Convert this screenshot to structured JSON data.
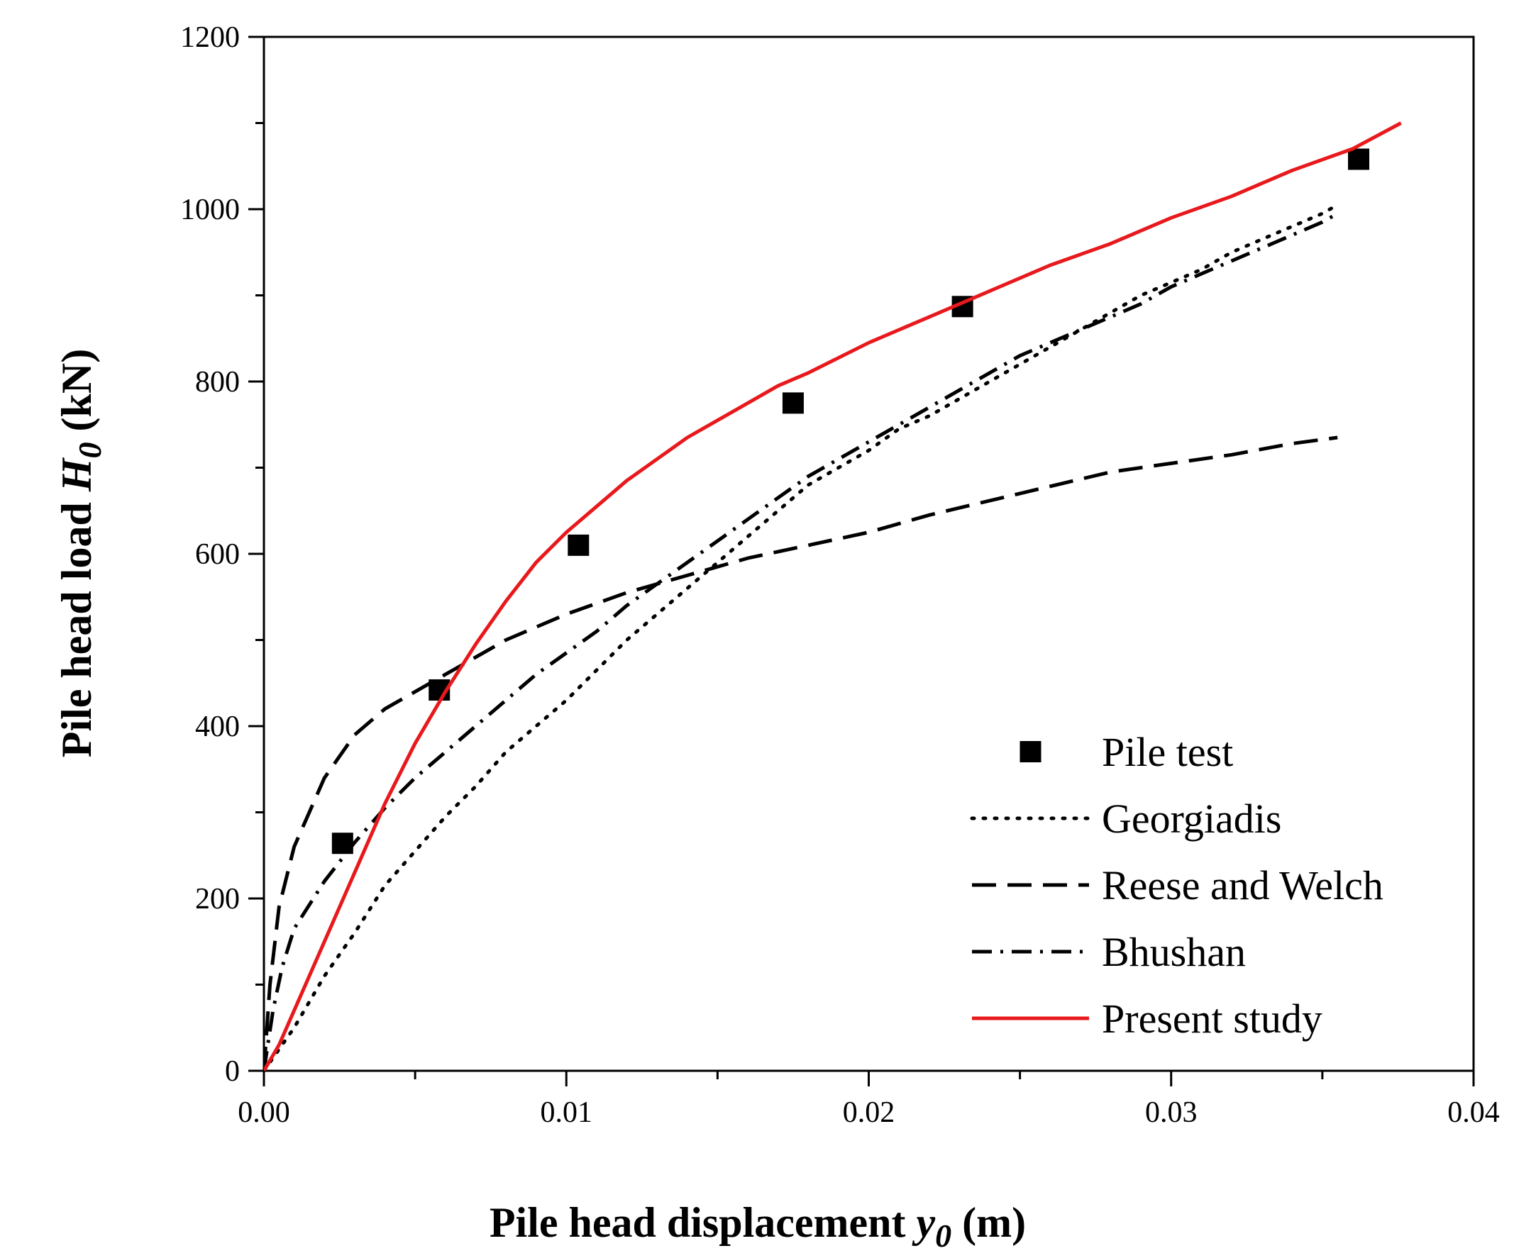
{
  "chart_data": {
    "type": "line",
    "title": "",
    "xlabel": "Pile head displacement",
    "xlabel_var": "y",
    "xlabel_sub": "0",
    "xlabel_unit": "(m)",
    "ylabel": "Pile head load",
    "ylabel_var": "H",
    "ylabel_sub": "0",
    "ylabel_unit": "(kN)",
    "xlim": [
      0,
      0.04
    ],
    "ylim": [
      0,
      1200
    ],
    "xticks": [
      0.0,
      0.01,
      0.02,
      0.03,
      0.04
    ],
    "xtick_labels": [
      "0.00",
      "0.01",
      "0.02",
      "0.03",
      "0.04"
    ],
    "yticks": [
      0,
      200,
      400,
      600,
      800,
      1000,
      1200
    ],
    "ytick_labels": [
      "0",
      "200",
      "400",
      "600",
      "800",
      "1000",
      "1200"
    ],
    "legend_position": "bottom-right",
    "series": [
      {
        "name": "Pile test",
        "style": "square-markers",
        "color": "#000000",
        "points": [
          [
            0.0026,
            264
          ],
          [
            0.0058,
            442
          ],
          [
            0.0104,
            610
          ],
          [
            0.0175,
            775
          ],
          [
            0.0231,
            887
          ],
          [
            0.0362,
            1058
          ]
        ]
      },
      {
        "name": "Georgiadis",
        "style": "dotted",
        "color": "#000000",
        "points": [
          [
            0.0,
            0
          ],
          [
            0.0005,
            25
          ],
          [
            0.001,
            50
          ],
          [
            0.002,
            110
          ],
          [
            0.003,
            160
          ],
          [
            0.004,
            215
          ],
          [
            0.005,
            255
          ],
          [
            0.006,
            295
          ],
          [
            0.007,
            330
          ],
          [
            0.008,
            370
          ],
          [
            0.009,
            400
          ],
          [
            0.01,
            430
          ],
          [
            0.011,
            465
          ],
          [
            0.012,
            500
          ],
          [
            0.013,
            530
          ],
          [
            0.014,
            560
          ],
          [
            0.015,
            590
          ],
          [
            0.016,
            620
          ],
          [
            0.017,
            650
          ],
          [
            0.018,
            680
          ],
          [
            0.019,
            700
          ],
          [
            0.02,
            720
          ],
          [
            0.021,
            745
          ],
          [
            0.022,
            760
          ],
          [
            0.023,
            780
          ],
          [
            0.024,
            800
          ],
          [
            0.025,
            820
          ],
          [
            0.026,
            840
          ],
          [
            0.027,
            860
          ],
          [
            0.028,
            880
          ],
          [
            0.029,
            900
          ],
          [
            0.03,
            915
          ],
          [
            0.031,
            930
          ],
          [
            0.032,
            950
          ],
          [
            0.033,
            965
          ],
          [
            0.034,
            980
          ],
          [
            0.035,
            995
          ],
          [
            0.0355,
            1005
          ]
        ]
      },
      {
        "name": "Reese and Welch",
        "style": "dashed",
        "color": "#000000",
        "points": [
          [
            0.0,
            0
          ],
          [
            0.0002,
            100
          ],
          [
            0.0005,
            190
          ],
          [
            0.001,
            260
          ],
          [
            0.002,
            340
          ],
          [
            0.003,
            390
          ],
          [
            0.004,
            420
          ],
          [
            0.005,
            440
          ],
          [
            0.006,
            460
          ],
          [
            0.007,
            480
          ],
          [
            0.008,
            500
          ],
          [
            0.01,
            530
          ],
          [
            0.012,
            555
          ],
          [
            0.014,
            575
          ],
          [
            0.016,
            595
          ],
          [
            0.018,
            610
          ],
          [
            0.02,
            625
          ],
          [
            0.022,
            645
          ],
          [
            0.025,
            670
          ],
          [
            0.028,
            695
          ],
          [
            0.03,
            705
          ],
          [
            0.032,
            715
          ],
          [
            0.034,
            728
          ],
          [
            0.0355,
            735
          ]
        ]
      },
      {
        "name": "Bhushan",
        "style": "dash-dot",
        "color": "#000000",
        "points": [
          [
            0.0,
            0
          ],
          [
            0.0003,
            70
          ],
          [
            0.0006,
            120
          ],
          [
            0.001,
            165
          ],
          [
            0.002,
            220
          ],
          [
            0.003,
            265
          ],
          [
            0.004,
            305
          ],
          [
            0.005,
            340
          ],
          [
            0.006,
            370
          ],
          [
            0.007,
            400
          ],
          [
            0.008,
            430
          ],
          [
            0.009,
            460
          ],
          [
            0.01,
            485
          ],
          [
            0.011,
            510
          ],
          [
            0.012,
            540
          ],
          [
            0.013,
            565
          ],
          [
            0.014,
            590
          ],
          [
            0.015,
            615
          ],
          [
            0.016,
            640
          ],
          [
            0.017,
            665
          ],
          [
            0.018,
            690
          ],
          [
            0.019,
            710
          ],
          [
            0.02,
            730
          ],
          [
            0.021,
            750
          ],
          [
            0.022,
            770
          ],
          [
            0.023,
            790
          ],
          [
            0.024,
            810
          ],
          [
            0.025,
            830
          ],
          [
            0.026,
            845
          ],
          [
            0.027,
            860
          ],
          [
            0.028,
            875
          ],
          [
            0.029,
            890
          ],
          [
            0.03,
            910
          ],
          [
            0.031,
            925
          ],
          [
            0.032,
            940
          ],
          [
            0.033,
            955
          ],
          [
            0.034,
            970
          ],
          [
            0.035,
            985
          ],
          [
            0.0355,
            995
          ]
        ]
      },
      {
        "name": "Present study",
        "style": "solid",
        "color": "#e8191c",
        "points": [
          [
            0.0,
            0
          ],
          [
            0.0005,
            30
          ],
          [
            0.001,
            70
          ],
          [
            0.002,
            150
          ],
          [
            0.003,
            230
          ],
          [
            0.004,
            310
          ],
          [
            0.005,
            380
          ],
          [
            0.006,
            440
          ],
          [
            0.007,
            495
          ],
          [
            0.008,
            545
          ],
          [
            0.009,
            590
          ],
          [
            0.01,
            625
          ],
          [
            0.011,
            655
          ],
          [
            0.012,
            685
          ],
          [
            0.013,
            710
          ],
          [
            0.014,
            735
          ],
          [
            0.015,
            755
          ],
          [
            0.016,
            775
          ],
          [
            0.017,
            795
          ],
          [
            0.018,
            810
          ],
          [
            0.02,
            845
          ],
          [
            0.022,
            875
          ],
          [
            0.024,
            905
          ],
          [
            0.026,
            935
          ],
          [
            0.028,
            960
          ],
          [
            0.03,
            990
          ],
          [
            0.032,
            1015
          ],
          [
            0.034,
            1045
          ],
          [
            0.036,
            1070
          ],
          [
            0.0376,
            1100
          ]
        ]
      }
    ]
  }
}
